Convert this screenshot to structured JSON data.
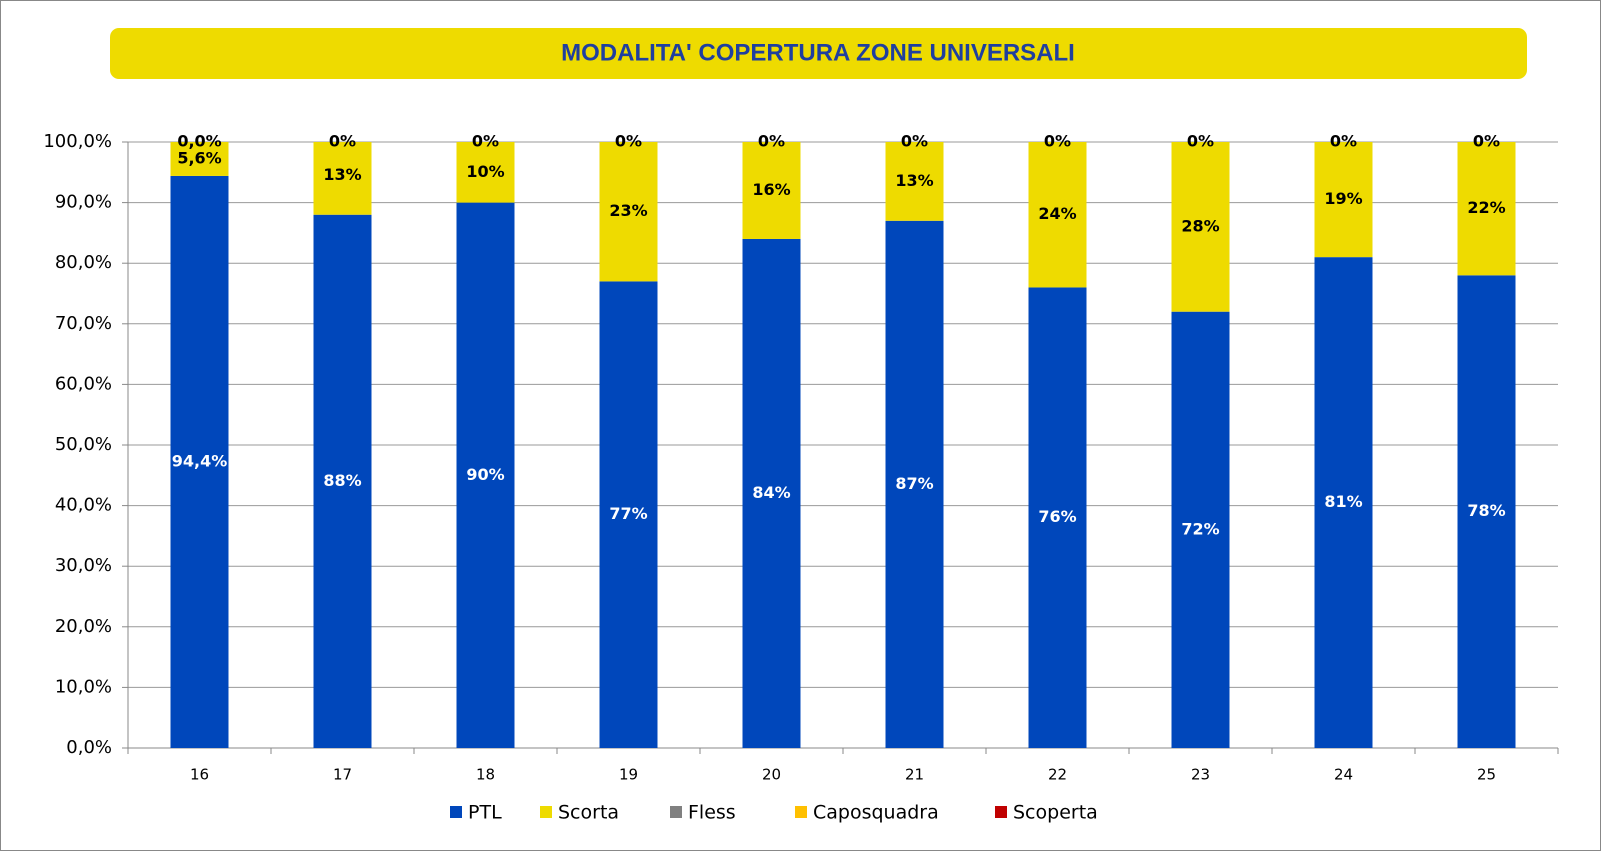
{
  "chart_data": {
    "type": "stacked_bar",
    "title": "MODALITA' COPERTURA ZONE UNIVERSALI",
    "categories": [
      "16",
      "17",
      "18",
      "19",
      "20",
      "21",
      "22",
      "23",
      "24",
      "25"
    ],
    "series": [
      {
        "name": "PTL",
        "color": "#0047bb",
        "values": [
          94.4,
          88,
          90,
          77,
          84,
          87,
          76,
          72,
          81,
          78
        ],
        "value_labels": [
          "94,4%",
          "88%",
          "90%",
          "77%",
          "84%",
          "87%",
          "76%",
          "72%",
          "81%",
          "78%"
        ]
      },
      {
        "name": "Scorta",
        "color": "#eedb00",
        "values": [
          5.6,
          13,
          10,
          23,
          16,
          13,
          24,
          28,
          19,
          22
        ],
        "value_labels": [
          "5,6%",
          "13%",
          "10%",
          "23%",
          "16%",
          "13%",
          "24%",
          "28%",
          "19%",
          "22%"
        ]
      },
      {
        "name": "Fless",
        "color": "#808080",
        "values": [
          0,
          0,
          0,
          0,
          0,
          0,
          0,
          0,
          0,
          0
        ]
      },
      {
        "name": "Caposquadra",
        "color": "#ffc000",
        "values": [
          0,
          0,
          0,
          0,
          0,
          0,
          0,
          0,
          0,
          0
        ]
      },
      {
        "name": "Scoperta",
        "color": "#c00000",
        "values": [
          0,
          0,
          0,
          0,
          0,
          0,
          0,
          0,
          0,
          0
        ],
        "value_labels": [
          "0,0%",
          "0%",
          "0%",
          "0%",
          "0%",
          "0%",
          "0%",
          "0%",
          "0%",
          "0%"
        ]
      }
    ],
    "ylim": [
      0,
      100
    ],
    "yticks": [
      {
        "value": 0,
        "label": "0,0%"
      },
      {
        "value": 10,
        "label": "10,0%"
      },
      {
        "value": 20,
        "label": "20,0%"
      },
      {
        "value": 30,
        "label": "30,0%"
      },
      {
        "value": 40,
        "label": "40,0%"
      },
      {
        "value": 50,
        "label": "50,0%"
      },
      {
        "value": 60,
        "label": "60,0%"
      },
      {
        "value": 70,
        "label": "70,0%"
      },
      {
        "value": 80,
        "label": "80,0%"
      },
      {
        "value": 90,
        "label": "90,0%"
      },
      {
        "value": 100,
        "label": "100,0%"
      }
    ],
    "grid": true,
    "legend": "bottom"
  }
}
